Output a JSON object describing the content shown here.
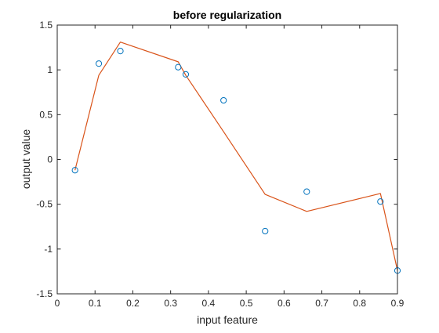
{
  "chart_data": {
    "type": "scatter",
    "title": "before regularization",
    "xlabel": "input feature",
    "ylabel": "output value",
    "xlim": [
      0,
      0.9
    ],
    "ylim": [
      -1.5,
      1.5
    ],
    "xticks": [
      0,
      0.1,
      0.2,
      0.3,
      0.4,
      0.5,
      0.6,
      0.7,
      0.8,
      0.9
    ],
    "xtick_labels": [
      "0",
      "0.1",
      "0.2",
      "0.3",
      "0.4",
      "0.5",
      "0.6",
      "0.7",
      "0.8",
      "0.9"
    ],
    "yticks": [
      -1.5,
      -1,
      -0.5,
      0,
      0.5,
      1,
      1.5
    ],
    "ytick_labels": [
      "-1.5",
      "-1",
      "-0.5",
      "0",
      "0.5",
      "1",
      "1.5"
    ],
    "grid": false,
    "legend": "none",
    "series": [
      {
        "type": "scatter",
        "marker": "circle-open",
        "color": "#0072BD",
        "x": [
          0.047,
          0.11,
          0.167,
          0.32,
          0.34,
          0.44,
          0.55,
          0.66,
          0.855,
          0.9
        ],
        "y": [
          -0.12,
          1.07,
          1.21,
          1.03,
          0.95,
          0.66,
          -0.8,
          -0.36,
          -0.47,
          -1.24
        ]
      },
      {
        "type": "line",
        "color": "#D95319",
        "x": [
          0.047,
          0.11,
          0.167,
          0.32,
          0.34,
          0.44,
          0.55,
          0.66,
          0.855,
          0.9
        ],
        "y": [
          -0.12,
          0.94,
          1.31,
          1.09,
          0.94,
          0.31,
          -0.39,
          -0.58,
          -0.38,
          -1.24
        ]
      }
    ]
  }
}
